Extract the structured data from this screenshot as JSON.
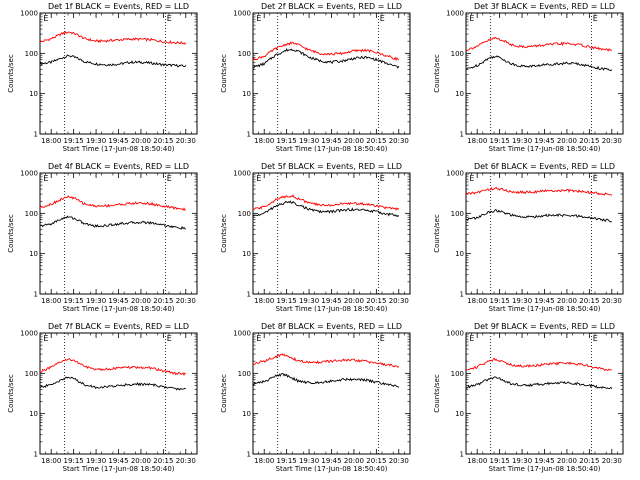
{
  "common": {
    "ylabel": "Counts/sec",
    "xlabel": "Start Time (17-Jun-08 18:50:40)",
    "y_ticks": [
      1,
      10,
      100,
      1000
    ],
    "y_tick_labels": [
      "1",
      "10",
      "100",
      "1000"
    ],
    "x_tick_labels": [
      "18:00",
      "19:15",
      "19:30",
      "19:45",
      "20:00",
      "20:15",
      "20:30"
    ],
    "x_tick_positions": [
      0.5,
      1.5,
      2.5,
      3.5,
      4.5,
      5.5,
      6.5
    ],
    "xlim": [
      0,
      7.0
    ],
    "ylim": [
      1,
      1000
    ],
    "yscale": "log",
    "vlines_x": [
      1.1,
      5.6
    ],
    "markers": [
      {
        "x": 0.15,
        "text": "E"
      },
      {
        "x": 5.65,
        "text": "E"
      }
    ],
    "colors": {
      "events": "#000000",
      "lld": "#ff0000"
    }
  },
  "chart_data": [
    {
      "type": "line",
      "title": "Det 1f BLACK = Events, RED = LLD",
      "series": [
        {
          "color": "#000000",
          "x": [
            0.0,
            0.5,
            1.0,
            1.3,
            1.6,
            2.0,
            2.5,
            3.0,
            3.5,
            4.0,
            4.5,
            5.0,
            5.5,
            6.0,
            6.5
          ],
          "values": [
            55,
            60,
            78,
            88,
            78,
            62,
            55,
            52,
            54,
            60,
            60,
            57,
            52,
            50,
            48
          ]
        },
        {
          "color": "#ff0000",
          "x": [
            0.0,
            0.5,
            1.0,
            1.3,
            1.6,
            2.0,
            2.5,
            3.0,
            3.5,
            4.0,
            4.5,
            5.0,
            5.5,
            6.0,
            6.5
          ],
          "values": [
            190,
            230,
            310,
            340,
            300,
            230,
            200,
            205,
            215,
            225,
            225,
            215,
            195,
            185,
            180
          ]
        }
      ]
    },
    {
      "type": "line",
      "title": "Det 2f BLACK = Events, RED = LLD",
      "series": [
        {
          "color": "#000000",
          "x": [
            0.0,
            0.5,
            1.0,
            1.5,
            1.8,
            2.0,
            2.5,
            3.0,
            3.5,
            4.0,
            4.5,
            5.0,
            5.5,
            6.0,
            6.5
          ],
          "values": [
            45,
            55,
            90,
            120,
            125,
            115,
            80,
            65,
            60,
            65,
            75,
            80,
            70,
            55,
            45
          ]
        },
        {
          "color": "#ff0000",
          "x": [
            0.0,
            0.5,
            1.0,
            1.5,
            1.8,
            2.0,
            2.5,
            3.0,
            3.5,
            4.0,
            4.5,
            5.0,
            5.5,
            6.0,
            6.5
          ],
          "values": [
            70,
            85,
            130,
            170,
            180,
            165,
            120,
            100,
            95,
            100,
            115,
            120,
            105,
            85,
            70
          ]
        }
      ]
    },
    {
      "type": "line",
      "title": "Det 3f BLACK = Events, RED = LLD",
      "series": [
        {
          "color": "#000000",
          "x": [
            0.0,
            0.5,
            1.0,
            1.3,
            1.6,
            2.0,
            2.5,
            3.0,
            3.5,
            4.0,
            4.5,
            5.0,
            5.5,
            6.0,
            6.5
          ],
          "values": [
            40,
            50,
            75,
            85,
            75,
            55,
            48,
            48,
            52,
            55,
            57,
            55,
            48,
            42,
            38
          ]
        },
        {
          "color": "#ff0000",
          "x": [
            0.0,
            0.5,
            1.0,
            1.3,
            1.6,
            2.0,
            2.5,
            3.0,
            3.5,
            4.0,
            4.5,
            5.0,
            5.5,
            6.0,
            6.5
          ],
          "values": [
            120,
            150,
            210,
            240,
            215,
            165,
            145,
            150,
            160,
            170,
            175,
            165,
            145,
            128,
            118
          ]
        }
      ]
    },
    {
      "type": "line",
      "title": "Det 4f BLACK = Events, RED = LLD",
      "series": [
        {
          "color": "#000000",
          "x": [
            0.0,
            0.5,
            1.0,
            1.3,
            1.6,
            2.0,
            2.5,
            3.0,
            3.5,
            4.0,
            4.5,
            5.0,
            5.5,
            6.0,
            6.5
          ],
          "values": [
            48,
            55,
            75,
            82,
            72,
            55,
            48,
            50,
            55,
            58,
            60,
            58,
            52,
            45,
            42
          ]
        },
        {
          "color": "#ff0000",
          "x": [
            0.0,
            0.5,
            1.0,
            1.3,
            1.6,
            2.0,
            2.5,
            3.0,
            3.5,
            4.0,
            4.5,
            5.0,
            5.5,
            6.0,
            6.5
          ],
          "values": [
            140,
            170,
            230,
            260,
            225,
            170,
            150,
            155,
            165,
            175,
            180,
            170,
            150,
            135,
            125
          ]
        }
      ]
    },
    {
      "type": "line",
      "title": "Det 5f BLACK = Events, RED = LLD",
      "series": [
        {
          "color": "#000000",
          "x": [
            0.0,
            0.5,
            1.0,
            1.5,
            1.8,
            2.0,
            2.5,
            3.0,
            3.5,
            4.0,
            4.5,
            5.0,
            5.5,
            6.0,
            6.5
          ],
          "values": [
            85,
            100,
            150,
            190,
            185,
            165,
            125,
            110,
            110,
            120,
            125,
            120,
            110,
            95,
            88
          ]
        },
        {
          "color": "#ff0000",
          "x": [
            0.0,
            0.5,
            1.0,
            1.5,
            1.8,
            2.0,
            2.5,
            3.0,
            3.5,
            4.0,
            4.5,
            5.0,
            5.5,
            6.0,
            6.5
          ],
          "values": [
            125,
            145,
            215,
            270,
            265,
            235,
            180,
            160,
            160,
            172,
            178,
            170,
            155,
            135,
            125
          ]
        }
      ]
    },
    {
      "type": "line",
      "title": "Det 6f BLACK = Events, RED = LLD",
      "series": [
        {
          "color": "#000000",
          "x": [
            0.0,
            0.5,
            1.0,
            1.3,
            1.6,
            2.0,
            2.5,
            3.0,
            3.5,
            4.0,
            4.5,
            5.0,
            5.5,
            6.0,
            6.5
          ],
          "values": [
            70,
            78,
            105,
            118,
            108,
            90,
            80,
            82,
            88,
            90,
            88,
            85,
            78,
            70,
            65
          ]
        },
        {
          "color": "#ff0000",
          "x": [
            0.0,
            0.5,
            1.0,
            1.3,
            1.6,
            2.0,
            2.5,
            3.0,
            3.5,
            4.0,
            4.5,
            5.0,
            5.5,
            6.0,
            6.5
          ],
          "values": [
            300,
            330,
            390,
            420,
            390,
            345,
            330,
            340,
            355,
            365,
            365,
            355,
            330,
            305,
            290
          ]
        }
      ]
    },
    {
      "type": "line",
      "title": "Det 7f BLACK = Events, RED = LLD",
      "series": [
        {
          "color": "#000000",
          "x": [
            0.0,
            0.5,
            1.0,
            1.3,
            1.6,
            2.0,
            2.5,
            3.0,
            3.5,
            4.0,
            4.5,
            5.0,
            5.5,
            6.0,
            6.5
          ],
          "values": [
            45,
            52,
            72,
            80,
            70,
            52,
            45,
            46,
            50,
            53,
            54,
            52,
            46,
            42,
            40
          ]
        },
        {
          "color": "#ff0000",
          "x": [
            0.0,
            0.5,
            1.0,
            1.3,
            1.6,
            2.0,
            2.5,
            3.0,
            3.5,
            4.0,
            4.5,
            5.0,
            5.5,
            6.0,
            6.5
          ],
          "values": [
            110,
            140,
            200,
            225,
            200,
            145,
            125,
            128,
            135,
            140,
            140,
            135,
            115,
            100,
            95
          ]
        }
      ]
    },
    {
      "type": "line",
      "title": "Det 8f BLACK = Events, RED = LLD",
      "series": [
        {
          "color": "#000000",
          "x": [
            0.0,
            0.5,
            1.0,
            1.3,
            1.6,
            2.0,
            2.5,
            3.0,
            3.5,
            4.0,
            4.5,
            5.0,
            5.5,
            6.0,
            6.5
          ],
          "values": [
            55,
            62,
            85,
            95,
            85,
            65,
            58,
            60,
            65,
            70,
            72,
            68,
            60,
            52,
            48
          ]
        },
        {
          "color": "#ff0000",
          "x": [
            0.0,
            0.5,
            1.0,
            1.3,
            1.6,
            2.0,
            2.5,
            3.0,
            3.5,
            4.0,
            4.5,
            5.0,
            5.5,
            6.0,
            6.5
          ],
          "values": [
            170,
            200,
            260,
            290,
            260,
            205,
            185,
            190,
            200,
            210,
            210,
            200,
            180,
            160,
            150
          ]
        }
      ]
    },
    {
      "type": "line",
      "title": "Det 9f BLACK = Events, RED = LLD",
      "series": [
        {
          "color": "#000000",
          "x": [
            0.0,
            0.5,
            1.0,
            1.3,
            1.6,
            2.0,
            2.5,
            3.0,
            3.5,
            4.0,
            4.5,
            5.0,
            5.5,
            6.0,
            6.5
          ],
          "values": [
            45,
            52,
            72,
            80,
            70,
            55,
            50,
            52,
            55,
            58,
            58,
            55,
            50,
            45,
            42
          ]
        },
        {
          "color": "#ff0000",
          "x": [
            0.0,
            0.5,
            1.0,
            1.3,
            1.6,
            2.0,
            2.5,
            3.0,
            3.5,
            4.0,
            4.5,
            5.0,
            5.5,
            6.0,
            6.5
          ],
          "values": [
            120,
            145,
            200,
            225,
            200,
            165,
            150,
            155,
            165,
            175,
            178,
            170,
            150,
            130,
            120
          ]
        }
      ]
    }
  ]
}
